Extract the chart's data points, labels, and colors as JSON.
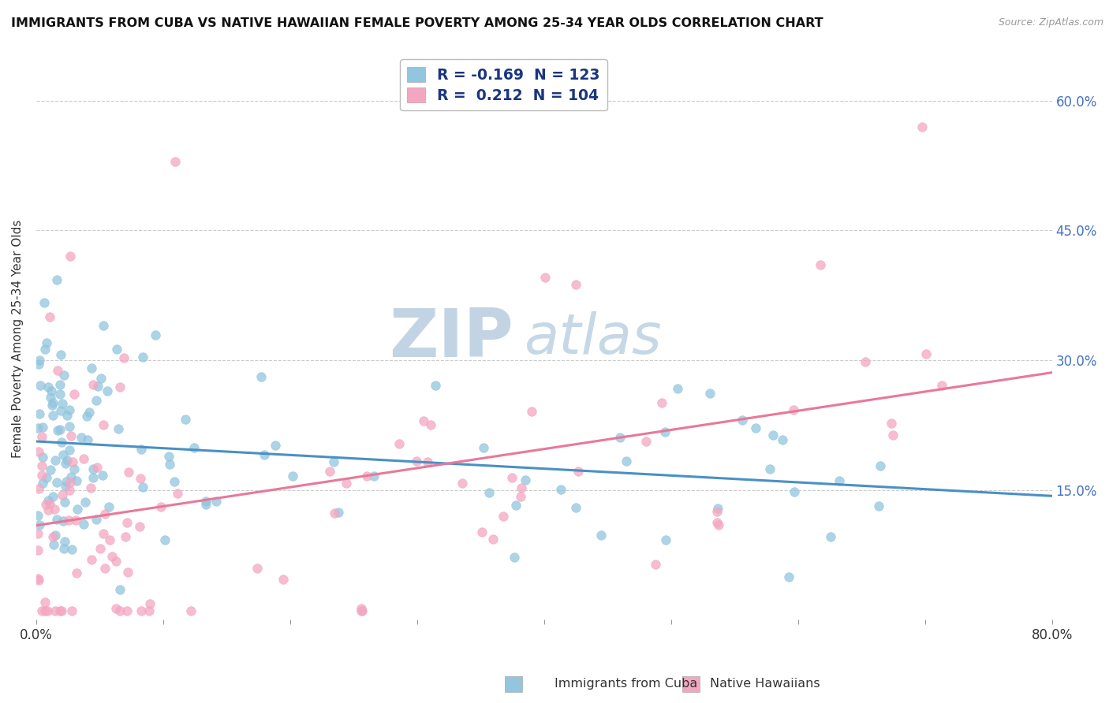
{
  "title": "IMMIGRANTS FROM CUBA VS NATIVE HAWAIIAN FEMALE POVERTY AMONG 25-34 YEAR OLDS CORRELATION CHART",
  "source": "Source: ZipAtlas.com",
  "ylabel": "Female Poverty Among 25-34 Year Olds",
  "x_min": 0.0,
  "x_max": 0.8,
  "y_min": 0.0,
  "y_max": 0.65,
  "x_ticks": [
    0.0,
    0.1,
    0.2,
    0.3,
    0.4,
    0.5,
    0.6,
    0.7,
    0.8
  ],
  "y_ticks": [
    0.0,
    0.15,
    0.3,
    0.45,
    0.6
  ],
  "legend_r1": "-0.169",
  "legend_n1": "123",
  "legend_r2": "0.212",
  "legend_n2": "104",
  "color_blue": "#92c5de",
  "color_pink": "#f4a6c0",
  "line_color_blue": "#4a90c4",
  "line_color_pink": "#e87899",
  "background_color": "#ffffff",
  "grid_color": "#cccccc",
  "watermark_zip": "ZIP",
  "watermark_atlas": "atlas",
  "right_tick_color": "#4472c4",
  "legend_text_color": "#1a3580"
}
